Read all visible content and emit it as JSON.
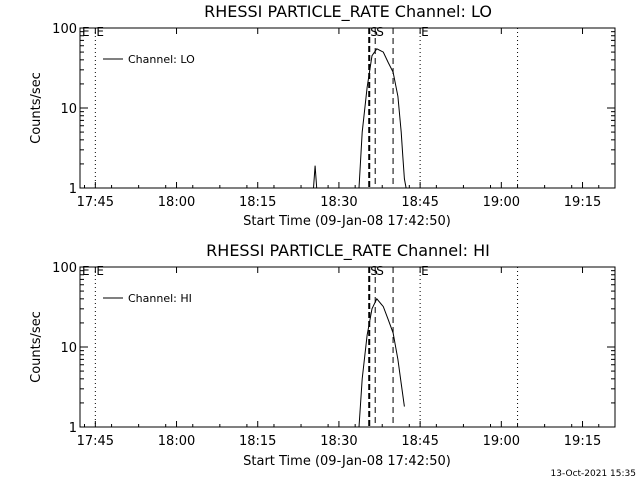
{
  "footer": {
    "timestamp": "13-Oct-2021 15:35"
  },
  "chart_data": [
    {
      "type": "line",
      "title": "RHESSI PARTICLE_RATE Channel: LO",
      "xlabel": "Start Time (09-Jan-08 17:42:50)",
      "ylabel": "Counts/sec",
      "yscale": "log",
      "ylim": [
        1,
        100
      ],
      "xlim": [
        -0.0472,
        1.6
      ],
      "x_units": "hours since 17:45",
      "x_ticks": [
        0,
        0.25,
        0.5,
        0.75,
        1.0,
        1.25,
        1.5
      ],
      "x_tick_labels": [
        "17:45",
        "18:00",
        "18:15",
        "18:30",
        "18:45",
        "19:00",
        "19:15"
      ],
      "y_ticks": [
        1,
        10,
        100
      ],
      "y_tick_labels": [
        "1",
        "10",
        "100"
      ],
      "legend": {
        "label": "Channel: LO",
        "position": "top-left"
      },
      "series": [
        {
          "name": "Channel: LO",
          "segments": [
            {
              "x": [
                0.6717,
                0.6767,
                0.6817
              ],
              "y": [
                1,
                1.9,
                1
              ]
            },
            {
              "x": [
                0.8117,
                0.8217,
                0.8367,
                0.8517,
                0.8667,
                0.8867,
                0.9017,
                0.9167,
                0.9317,
                0.9417,
                0.9467,
                0.9517,
                0.9567
              ],
              "y": [
                1,
                5,
                18,
                45,
                55,
                50,
                37,
                28,
                14,
                5,
                2.5,
                1.3,
                1
              ]
            }
          ]
        }
      ],
      "markers": [
        {
          "x": 0.0,
          "label": "E",
          "style": "dotted"
        },
        {
          "x": 1.0,
          "label": "E",
          "style": "dotted"
        },
        {
          "x": 1.3,
          "label": "",
          "style": "dotted"
        },
        {
          "x": 0.8433,
          "label": "",
          "style": "thick-dashed"
        },
        {
          "x": 0.8617,
          "label": "S",
          "style": "dashed"
        },
        {
          "x": 0.9167,
          "label": "",
          "style": "dashed"
        }
      ],
      "marker_labels": [
        {
          "x": 0.8433,
          "label": "S"
        }
      ]
    },
    {
      "type": "line",
      "title": "RHESSI PARTICLE_RATE Channel: HI",
      "xlabel": "Start Time (09-Jan-08 17:42:50)",
      "ylabel": "Counts/sec",
      "yscale": "log",
      "ylim": [
        1,
        100
      ],
      "xlim": [
        -0.0472,
        1.6
      ],
      "x_units": "hours since 17:45",
      "x_ticks": [
        0,
        0.25,
        0.5,
        0.75,
        1.0,
        1.25,
        1.5
      ],
      "x_tick_labels": [
        "17:45",
        "18:00",
        "18:15",
        "18:30",
        "18:45",
        "19:00",
        "19:15"
      ],
      "y_ticks": [
        1,
        10,
        100
      ],
      "y_tick_labels": [
        "1",
        "10",
        "100"
      ],
      "legend": {
        "label": "Channel: HI",
        "position": "top-left"
      },
      "series": [
        {
          "name": "Channel: HI",
          "segments": [
            {
              "x": [
                0.8117,
                0.8217,
                0.8367,
                0.8517,
                0.8667,
                0.8867,
                0.9017,
                0.9167,
                0.9317,
                0.9417,
                0.9517
              ],
              "y": [
                1,
                4,
                14,
                30,
                40,
                32,
                22,
                15,
                7,
                3.5,
                1.8
              ]
            }
          ]
        }
      ],
      "markers": [
        {
          "x": 0.0,
          "label": "E",
          "style": "dotted"
        },
        {
          "x": 1.0,
          "label": "E",
          "style": "dotted"
        },
        {
          "x": 1.3,
          "label": "",
          "style": "dotted"
        },
        {
          "x": 0.8433,
          "label": "",
          "style": "thick-dashed"
        },
        {
          "x": 0.8617,
          "label": "S",
          "style": "dashed"
        },
        {
          "x": 0.9167,
          "label": "",
          "style": "dashed"
        }
      ],
      "marker_labels": [
        {
          "x": 0.8433,
          "label": "S"
        }
      ]
    }
  ]
}
